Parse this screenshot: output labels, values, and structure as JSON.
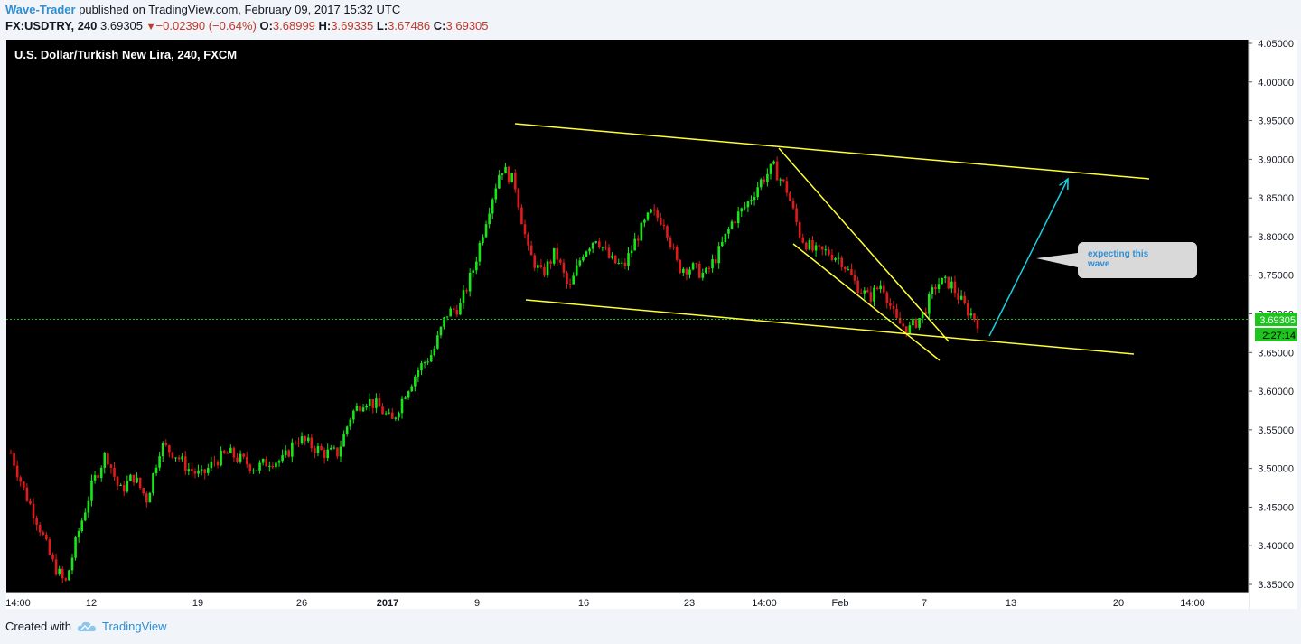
{
  "header": {
    "user": "Wave-Trader",
    "published_text": "published on TradingView.com, February 09, 2017 15:32 UTC",
    "symbol": "FX:USDTRY, 240",
    "last": "3.69305",
    "change_arrow": "▼",
    "change": "−0.02390 (−0.64%)",
    "o_label": "O:",
    "o_value": "3.68999",
    "h_label": "H:",
    "h_value": "3.69335",
    "l_label": "L:",
    "l_value": "3.67486",
    "c_label": "C:",
    "c_value": "3.69305"
  },
  "footer": {
    "created_with": "Created with",
    "brand": "TradingView",
    "brand_icon": "tradingview-cloud-icon"
  },
  "colors": {
    "background": "#000000",
    "up_candle": "#19e619",
    "down_candle": "#e01b1b",
    "trendline": "#ffff33",
    "projection_arrow": "#17d3e6",
    "price_line": "#0fc20f",
    "callout_bg": "#d9d9d9",
    "callout_text": "#2d8fd5"
  },
  "chart_data": {
    "type": "candlestick",
    "title": "U.S. Dollar/Turkish New Lira, 240, FXCM",
    "x_ticks": [
      "14:00",
      "12",
      "19",
      "26",
      "2017",
      "9",
      "16",
      "23",
      "14:00",
      "Feb",
      "7",
      "13",
      "20",
      "14:00"
    ],
    "y_ticks": [
      "4.05000",
      "4.00000",
      "3.95000",
      "3.90000",
      "3.85000",
      "3.80000",
      "3.75000",
      "3.70000",
      "3.65000",
      "3.60000",
      "3.55000",
      "3.50000",
      "3.45000",
      "3.40000",
      "3.35000"
    ],
    "ylim": [
      3.34,
      4.06
    ],
    "y_scale": "linear",
    "grid": false,
    "last_price_label": "3.69305",
    "countdown_label": "2:27:14",
    "approx_closes": [
      3.52,
      3.47,
      3.43,
      3.38,
      3.35,
      3.42,
      3.48,
      3.52,
      3.47,
      3.49,
      3.46,
      3.53,
      3.52,
      3.5,
      3.49,
      3.51,
      3.52,
      3.51,
      3.5,
      3.51,
      3.51,
      3.54,
      3.53,
      3.52,
      3.52,
      3.57,
      3.59,
      3.58,
      3.56,
      3.6,
      3.63,
      3.65,
      3.7,
      3.71,
      3.76,
      3.83,
      3.89,
      3.87,
      3.78,
      3.75,
      3.78,
      3.73,
      3.78,
      3.8,
      3.77,
      3.76,
      3.8,
      3.83,
      3.82,
      3.76,
      3.76,
      3.75,
      3.78,
      3.82,
      3.84,
      3.87,
      3.89,
      3.86,
      3.8,
      3.78,
      3.78,
      3.77,
      3.74,
      3.72,
      3.74,
      3.69,
      3.68,
      3.7,
      3.74,
      3.74,
      3.71,
      3.69
    ],
    "annotations": {
      "callout_text": "expecting this wave",
      "upper_channel": [
        [
          570,
          137
        ],
        [
          1272,
          198
        ]
      ],
      "lower_channel": [
        [
          582,
          332
        ],
        [
          1255,
          392
        ]
      ],
      "wedge_upper": [
        [
          862,
          164
        ],
        [
          1050,
          378
        ]
      ],
      "wedge_lower": [
        [
          878,
          270
        ],
        [
          1040,
          399
        ]
      ],
      "projection_arrow": [
        [
          1095,
          372
        ],
        [
          1182,
          198
        ]
      ]
    }
  }
}
